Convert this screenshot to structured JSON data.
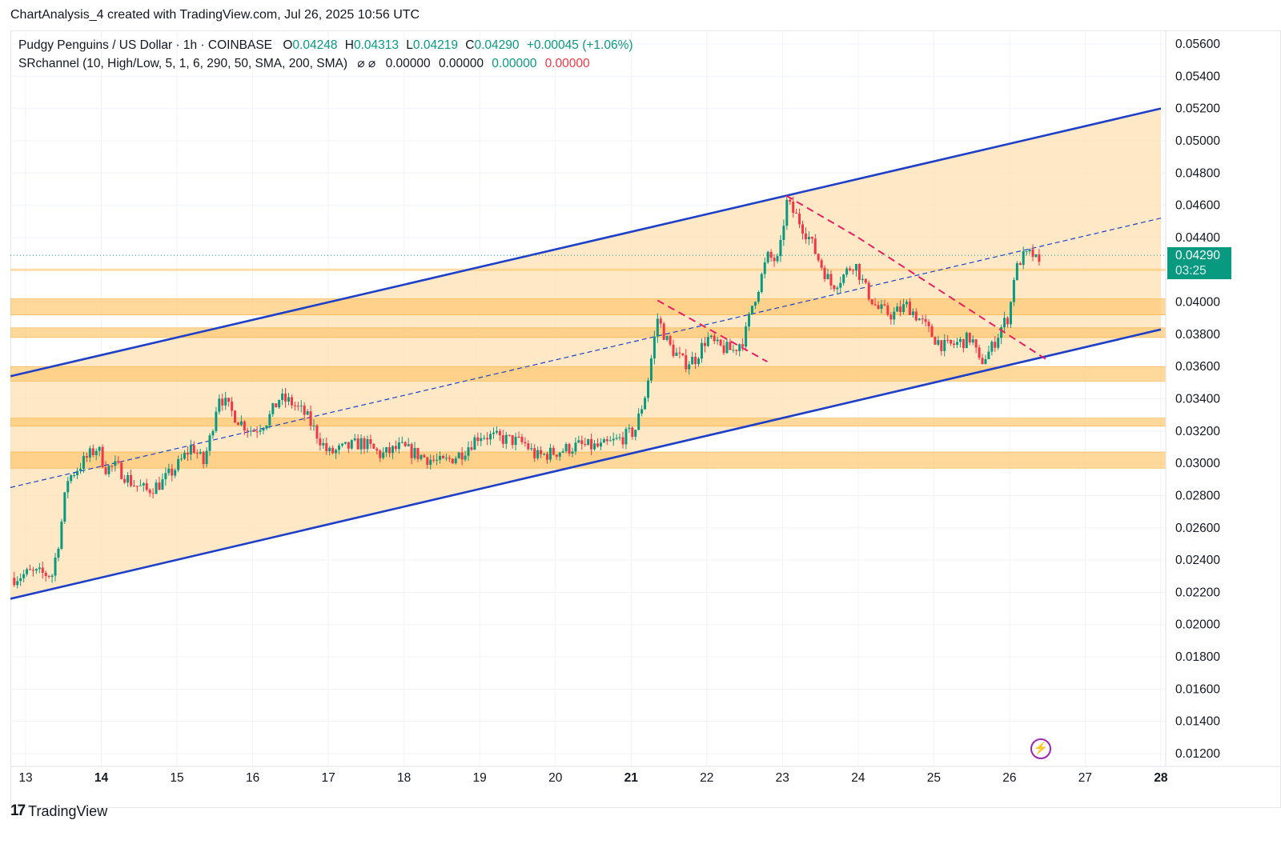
{
  "header": {
    "attribution": "ChartAnalysis_4 created with TradingView.com, Jul 26, 2025 10:56 UTC"
  },
  "legend": {
    "symbol": "Pudgy Penguins / US Dollar · 1h · COINBASE",
    "open_label": "O",
    "open": "0.04248",
    "high_label": "H",
    "high": "0.04313",
    "low_label": "L",
    "low": "0.04219",
    "close_label": "C",
    "close": "0.04290",
    "change": "+0.00045 (+1.06%)",
    "indicator": "SRchannel (10, High/Low, 5, 1, 6, 290, 50, SMA, 200, SMA)",
    "indicator_icons": "⌀  ⌀",
    "ind_v1": "0.00000",
    "ind_v2": "0.00000",
    "ind_v3": "0.00000",
    "ind_v4": "0.00000"
  },
  "price_label": {
    "price": "0.04290",
    "countdown": "03:25"
  },
  "footer": {
    "logo": "17",
    "brand": "TradingView"
  },
  "colors": {
    "up": "#089981",
    "down": "#f23645",
    "channel": "#1e40c8",
    "zone": "#ffe0b2",
    "band": "#ffc870",
    "dashed_red": "#e91e63",
    "grid": "#f0f3fa"
  },
  "chart_data": {
    "type": "candlestick",
    "title": "Pudgy Penguins / US Dollar · 1h · COINBASE",
    "ylim": [
      0.0115,
      0.0575
    ],
    "y_ticks": [
      "0.05600",
      "0.05400",
      "0.05200",
      "0.05000",
      "0.04800",
      "0.04600",
      "0.04400",
      "0.04200",
      "0.04000",
      "0.03800",
      "0.03600",
      "0.03400",
      "0.03200",
      "0.03000",
      "0.02800",
      "0.02600",
      "0.02400",
      "0.02200",
      "0.02000",
      "0.01800",
      "0.01600",
      "0.01400",
      "0.01200"
    ],
    "x_ticks": [
      "13",
      "14",
      "15",
      "16",
      "17",
      "18",
      "19",
      "20",
      "21",
      "22",
      "23",
      "24",
      "25",
      "26",
      "27",
      "28"
    ],
    "x_bold": [
      "14",
      "21",
      "28"
    ],
    "price_points": [
      [
        12.85,
        0.0229
      ],
      [
        13.05,
        0.0232
      ],
      [
        13.35,
        0.0231
      ],
      [
        13.45,
        0.0255
      ],
      [
        13.55,
        0.029
      ],
      [
        13.65,
        0.0295
      ],
      [
        13.8,
        0.0303
      ],
      [
        13.95,
        0.031
      ],
      [
        14.05,
        0.0297
      ],
      [
        14.2,
        0.0298
      ],
      [
        14.4,
        0.0288
      ],
      [
        14.6,
        0.0283
      ],
      [
        14.8,
        0.0288
      ],
      [
        15.0,
        0.0298
      ],
      [
        15.2,
        0.0311
      ],
      [
        15.35,
        0.03
      ],
      [
        15.45,
        0.0318
      ],
      [
        15.55,
        0.0343
      ],
      [
        15.7,
        0.0333
      ],
      [
        15.85,
        0.0325
      ],
      [
        16.0,
        0.032
      ],
      [
        16.2,
        0.0327
      ],
      [
        16.35,
        0.034
      ],
      [
        16.5,
        0.0338
      ],
      [
        16.7,
        0.033
      ],
      [
        16.85,
        0.0318
      ],
      [
        17.0,
        0.0306
      ],
      [
        17.2,
        0.0309
      ],
      [
        17.45,
        0.0313
      ],
      [
        17.7,
        0.0305
      ],
      [
        17.95,
        0.031
      ],
      [
        18.2,
        0.0305
      ],
      [
        18.5,
        0.03
      ],
      [
        18.75,
        0.0306
      ],
      [
        19.0,
        0.0318
      ],
      [
        19.2,
        0.0316
      ],
      [
        19.45,
        0.0314
      ],
      [
        19.6,
        0.0312
      ],
      [
        19.75,
        0.0304
      ],
      [
        20.0,
        0.0307
      ],
      [
        20.3,
        0.0311
      ],
      [
        20.6,
        0.031
      ],
      [
        20.85,
        0.0315
      ],
      [
        21.05,
        0.032
      ],
      [
        21.2,
        0.0345
      ],
      [
        21.35,
        0.039
      ],
      [
        21.5,
        0.0373
      ],
      [
        21.7,
        0.0362
      ],
      [
        21.85,
        0.0365
      ],
      [
        22.0,
        0.0378
      ],
      [
        22.15,
        0.0372
      ],
      [
        22.35,
        0.037
      ],
      [
        22.5,
        0.0378
      ],
      [
        22.6,
        0.0398
      ],
      [
        22.7,
        0.0412
      ],
      [
        22.8,
        0.0428
      ],
      [
        22.95,
        0.0425
      ],
      [
        23.05,
        0.0462
      ],
      [
        23.2,
        0.0452
      ],
      [
        23.35,
        0.044
      ],
      [
        23.5,
        0.0424
      ],
      [
        23.65,
        0.041
      ],
      [
        23.8,
        0.0416
      ],
      [
        23.95,
        0.0425
      ],
      [
        24.1,
        0.0408
      ],
      [
        24.25,
        0.0396
      ],
      [
        24.45,
        0.0392
      ],
      [
        24.65,
        0.0398
      ],
      [
        24.8,
        0.039
      ],
      [
        25.0,
        0.0378
      ],
      [
        25.15,
        0.0372
      ],
      [
        25.35,
        0.0375
      ],
      [
        25.5,
        0.0378
      ],
      [
        25.6,
        0.0362
      ],
      [
        25.75,
        0.037
      ],
      [
        25.9,
        0.0385
      ],
      [
        26.0,
        0.0392
      ],
      [
        26.05,
        0.0415
      ],
      [
        26.15,
        0.0427
      ],
      [
        26.3,
        0.043
      ],
      [
        26.4,
        0.0421
      ],
      [
        26.42,
        0.0429
      ]
    ],
    "last_price": 0.0429,
    "channel_upper": [
      [
        12.8,
        0.0354
      ],
      [
        28.0,
        0.052
      ]
    ],
    "channel_lower": [
      [
        12.8,
        0.0216
      ],
      [
        28.0,
        0.0383
      ]
    ],
    "channel_mid": [
      [
        12.8,
        0.0285
      ],
      [
        28.0,
        0.0452
      ]
    ],
    "zones": [
      [
        0.0392,
        0.0402
      ],
      [
        0.0378,
        0.0384
      ],
      [
        0.0351,
        0.036
      ],
      [
        0.0323,
        0.0328
      ],
      [
        0.0297,
        0.0307
      ]
    ],
    "thin_zone": 0.042,
    "dashed_trendlines": [
      [
        [
          21.35,
          0.0401
        ],
        [
          22.8,
          0.0363
        ]
      ],
      [
        [
          23.05,
          0.0466
        ],
        [
          24.0,
          0.044
        ]
      ],
      [
        [
          24.0,
          0.044
        ],
        [
          26.5,
          0.0364
        ]
      ]
    ]
  }
}
